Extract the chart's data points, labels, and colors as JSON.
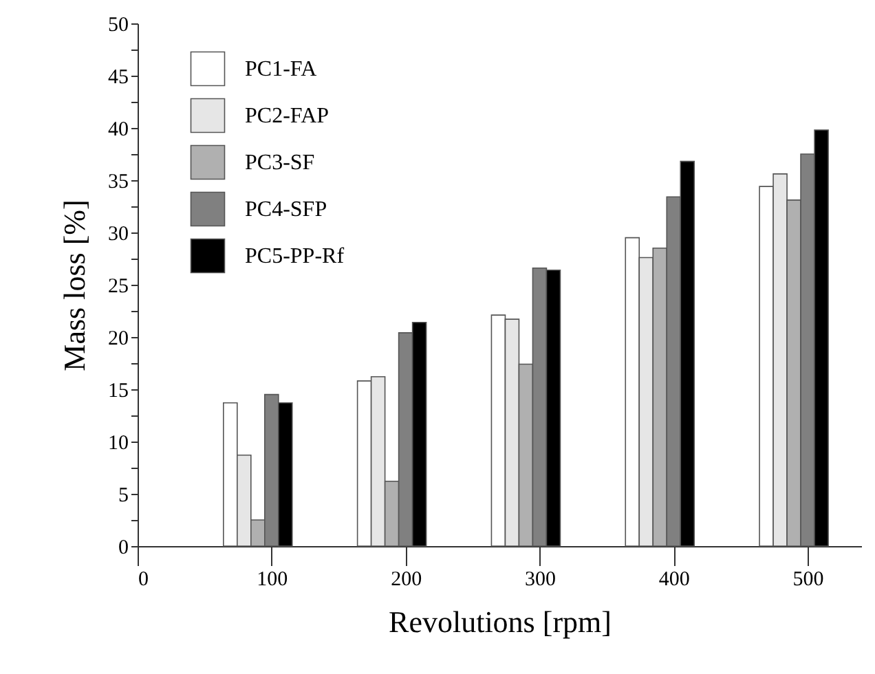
{
  "chart_data": {
    "type": "bar",
    "xlabel": "Revolutions [rpm]",
    "ylabel": "Mass loss [%]",
    "x": [
      100,
      200,
      300,
      400,
      500
    ],
    "series": [
      {
        "name": "PC1-FA",
        "color": "#ffffff",
        "values": [
          13.7,
          15.8,
          22.1,
          29.5,
          34.4
        ]
      },
      {
        "name": "PC2-FAP",
        "color": "#e6e6e6",
        "values": [
          8.7,
          16.2,
          21.7,
          27.6,
          35.6
        ]
      },
      {
        "name": "PC3-SF",
        "color": "#b0b0b0",
        "values": [
          2.5,
          6.2,
          17.4,
          28.5,
          33.1
        ]
      },
      {
        "name": "PC4-SFP",
        "color": "#808080",
        "values": [
          14.5,
          20.4,
          26.6,
          33.4,
          37.5
        ]
      },
      {
        "name": "PC5-PP-Rf",
        "color": "#000000",
        "values": [
          13.7,
          21.4,
          26.4,
          36.8,
          39.8
        ]
      }
    ],
    "xlim": [
      0,
      540
    ],
    "xticks": [
      0,
      100,
      200,
      300,
      400,
      500
    ],
    "ylim": [
      0,
      50
    ],
    "yticks": [
      0,
      {
        "value": 2.5,
        "label": null
      },
      5,
      {
        "value": 7.5,
        "label": null
      },
      10,
      {
        "value": 12.5,
        "label": null
      },
      15,
      {
        "value": 17.5,
        "label": null
      },
      20,
      {
        "value": 22.5,
        "label": null
      },
      25,
      {
        "value": 27.5,
        "label": null
      },
      30,
      {
        "value": 32.5,
        "label": null
      },
      35,
      {
        "value": 37.5,
        "label": null
      },
      40,
      {
        "value": 42.5,
        "label": null
      },
      45,
      {
        "value": 47.5,
        "label": null
      },
      50
    ],
    "grid": false,
    "legend": "top left"
  }
}
